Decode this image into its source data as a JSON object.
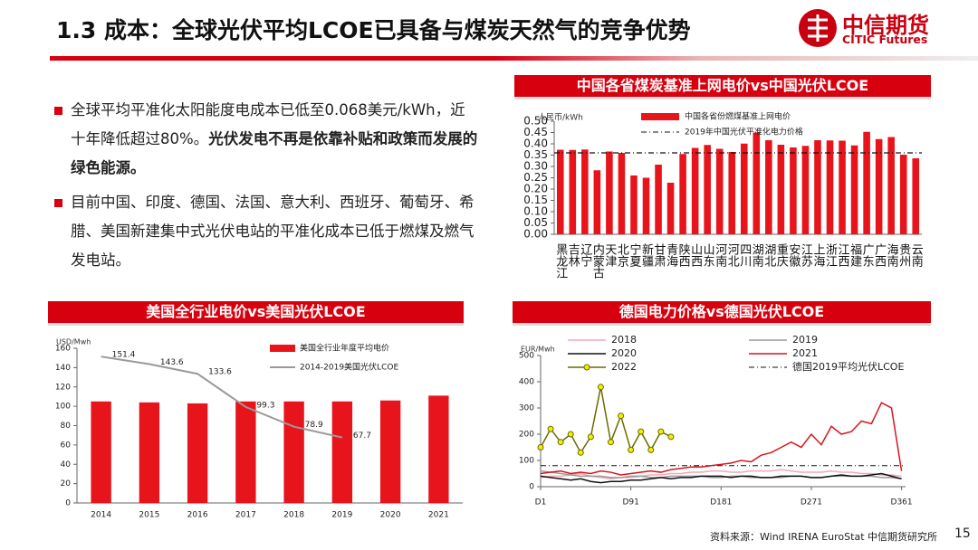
{
  "header": {
    "title": "1.3 成本：全球光伏平均LCOE已具备与煤炭天然气的竞争优势",
    "logo_cn": "中信期货",
    "logo_en": "CITIC Futures"
  },
  "bullets": [
    {
      "text": "全球平均平准化太阳能度电成本已低至0.068美元/kWh，近十年降低超过80%。",
      "emphasis": "光伏发电不再是依靠补贴和政策而发展的绿色能源。"
    },
    {
      "text": "目前中国、印度、德国、法国、意大利、西班牙、葡萄牙、希腊、美国新建集中式光伏电站的平准化成本已低于燃煤及燃气发电站。"
    }
  ],
  "chart_data": [
    {
      "type": "bar",
      "title": "中国各省煤炭基准上网电价vs中国光伏LCOE",
      "y_unit": "人民币/kWh",
      "categories": [
        "黑龙江",
        "吉林",
        "辽宁",
        "内蒙古",
        "天津",
        "北京",
        "宁夏",
        "新疆",
        "甘肃",
        "青海",
        "陕西",
        "山西",
        "山东",
        "河南",
        "河北",
        "四川",
        "湖南",
        "湖北",
        "重庆",
        "安徽",
        "江苏",
        "上海",
        "浙江",
        "江西",
        "福建",
        "广东",
        "广西",
        "海南",
        "贵州",
        "云南"
      ],
      "series": [
        {
          "name": "中国各省份燃煤基准上网电价",
          "color": "#e8141c",
          "values": [
            0.374,
            0.373,
            0.375,
            0.283,
            0.366,
            0.36,
            0.26,
            0.25,
            0.308,
            0.228,
            0.355,
            0.382,
            0.395,
            0.378,
            0.364,
            0.401,
            0.45,
            0.416,
            0.396,
            0.384,
            0.391,
            0.416,
            0.415,
            0.414,
            0.393,
            0.453,
            0.421,
            0.43,
            0.352,
            0.336
          ]
        }
      ],
      "reference_lines": [
        {
          "name": "2019年中国光伏平准化电力价格",
          "value": 0.36,
          "color": "#111111"
        }
      ],
      "ylim": [
        0,
        0.5
      ],
      "yticks": [
        {
          "value": 0,
          "label": "0.00"
        },
        {
          "value": 0.05,
          "label": "0.05"
        },
        {
          "value": 0.1,
          "label": "0.10"
        },
        {
          "value": 0.15,
          "label": "0.15"
        },
        {
          "value": 0.2,
          "label": "0.20"
        },
        {
          "value": 0.25,
          "label": "0.25"
        },
        {
          "value": 0.3,
          "label": "0.30"
        },
        {
          "value": 0.35,
          "label": "0.35"
        },
        {
          "value": 0.4,
          "label": "0.40"
        },
        {
          "value": 0.45,
          "label": "0.45"
        },
        {
          "value": 0.5,
          "label": "0.50"
        }
      ]
    },
    {
      "type": "bar",
      "title": "美国全行业电价vs美国光伏LCOE",
      "y_unit": "USD/Mwh",
      "categories": [
        "2014",
        "2015",
        "2016",
        "2017",
        "2018",
        "2019",
        "2020",
        "2021"
      ],
      "series": [
        {
          "name": "美国全行业年度平均电价",
          "type": "bar",
          "color": "#e8141c",
          "values": [
            105,
            104,
            103,
            105,
            105,
            105,
            106,
            111
          ]
        },
        {
          "name": "2014-2019美国光伏LCOE",
          "type": "line",
          "color": "#9a9a9a",
          "values": [
            151.4,
            143.6,
            133.6,
            99.3,
            78.9,
            67.7,
            null,
            null
          ]
        }
      ],
      "ylim": [
        0,
        160
      ],
      "yticks": [
        0,
        20,
        40,
        60,
        80,
        100,
        120,
        140,
        160
      ]
    },
    {
      "type": "line",
      "title": "德国电力价格vs德国光伏LCOE",
      "y_unit": "EUR/Mwh",
      "x": [
        1,
        11,
        21,
        31,
        41,
        51,
        61,
        71,
        81,
        91,
        101,
        111,
        121,
        131,
        141,
        151,
        161,
        171,
        181,
        191,
        201,
        211,
        221,
        231,
        241,
        251,
        261,
        271,
        281,
        291,
        301,
        311,
        321,
        331,
        341,
        351,
        361
      ],
      "series": [
        {
          "name": "2018",
          "color": "#f2a8b8",
          "values": [
            35,
            40,
            40,
            45,
            50,
            40,
            35,
            30,
            35,
            35,
            40,
            45,
            45,
            50,
            50,
            55,
            55,
            60,
            60,
            55,
            55,
            60,
            60,
            60,
            65,
            60,
            55,
            55,
            55,
            60,
            55,
            55,
            50,
            50,
            45,
            45,
            40
          ]
        },
        {
          "name": "2019",
          "color": "#9a9a9a",
          "values": [
            60,
            55,
            50,
            45,
            40,
            40,
            40,
            35,
            35,
            40,
            40,
            35,
            35,
            40,
            40,
            40,
            40,
            35,
            35,
            40,
            40,
            35,
            35,
            35,
            35,
            40,
            40,
            35,
            35,
            40,
            40,
            40,
            40,
            40,
            35,
            35,
            30
          ]
        },
        {
          "name": "2020",
          "color": "#111111",
          "values": [
            40,
            35,
            30,
            25,
            30,
            20,
            15,
            20,
            20,
            25,
            25,
            30,
            35,
            30,
            35,
            35,
            40,
            40,
            40,
            35,
            40,
            40,
            35,
            35,
            40,
            40,
            40,
            35,
            35,
            40,
            45,
            40,
            40,
            45,
            50,
            40,
            30
          ]
        },
        {
          "name": "2021",
          "color": "#d9141c",
          "values": [
            50,
            55,
            60,
            50,
            55,
            50,
            60,
            55,
            45,
            50,
            55,
            60,
            55,
            65,
            70,
            75,
            75,
            80,
            85,
            90,
            100,
            95,
            120,
            130,
            150,
            170,
            150,
            200,
            160,
            230,
            200,
            210,
            250,
            240,
            320,
            300,
            60
          ]
        },
        {
          "name": "2022",
          "color": "#6b6b00",
          "marker_color": "#f0f000",
          "values": [
            150,
            220,
            170,
            200,
            130,
            190,
            380,
            170,
            270,
            140,
            210,
            140,
            210,
            190,
            null,
            null,
            null,
            null,
            null,
            null,
            null,
            null,
            null,
            null,
            null,
            null,
            null,
            null,
            null,
            null,
            null,
            null,
            null,
            null,
            null,
            null,
            null
          ]
        }
      ],
      "reference_lines": [
        {
          "name": "德国2019平均光伏LCOE",
          "value": 80,
          "color": "#111111"
        }
      ],
      "xlim": [
        1,
        365
      ],
      "xticks": [
        {
          "value": 1,
          "label": "D1"
        },
        {
          "value": 91,
          "label": "D91"
        },
        {
          "value": 181,
          "label": "D181"
        },
        {
          "value": 271,
          "label": "D271"
        },
        {
          "value": 361,
          "label": "D361"
        }
      ],
      "ylim": [
        0,
        500
      ],
      "yticks": [
        0,
        100,
        200,
        300,
        400,
        500
      ]
    }
  ],
  "footer": {
    "source": "资料来源：Wind IRENA EuroStat 中信期货研究所",
    "page": "15"
  }
}
